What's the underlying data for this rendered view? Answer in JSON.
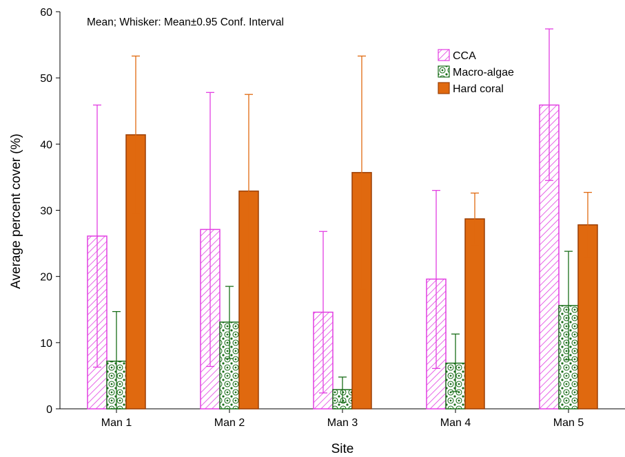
{
  "chart_data": {
    "type": "bar",
    "note": "Mean; Whisker: Mean±0.95 Conf. Interval",
    "xlabel": "Site",
    "ylabel": "Average percent cover (%)",
    "ylim": [
      0,
      60
    ],
    "yticks": [
      "0",
      "10",
      "20",
      "30",
      "40",
      "50",
      "60"
    ],
    "categories": [
      "Man 1",
      "Man 2",
      "Man 3",
      "Man 4",
      "Man 5"
    ],
    "legend_position": "top-right",
    "series": [
      {
        "name": "CCA",
        "pattern": "diagonal-hatch",
        "color": "#e23ee2",
        "values": [
          26.1,
          27.1,
          14.6,
          19.6,
          45.9
        ],
        "ci_low": [
          6.3,
          6.4,
          2.4,
          6.1,
          34.5
        ],
        "ci_high": [
          45.9,
          47.8,
          26.8,
          33.0,
          57.4
        ]
      },
      {
        "name": "Macro-algae",
        "pattern": "circles",
        "color": "#1a6e1a",
        "values": [
          7.2,
          13.1,
          2.9,
          6.9,
          15.6
        ],
        "ci_low": [
          0,
          7.6,
          1.0,
          2.6,
          7.4
        ],
        "ci_high": [
          14.7,
          18.5,
          4.8,
          11.3,
          23.8
        ]
      },
      {
        "name": "Hard coral",
        "pattern": "solid",
        "color": "#e0690f",
        "values": [
          41.4,
          32.9,
          35.7,
          28.7,
          27.8
        ],
        "ci_low": [
          29.5,
          18.3,
          18.1,
          24.8,
          22.9
        ],
        "ci_high": [
          53.3,
          47.5,
          53.3,
          32.6,
          32.7
        ]
      }
    ]
  }
}
